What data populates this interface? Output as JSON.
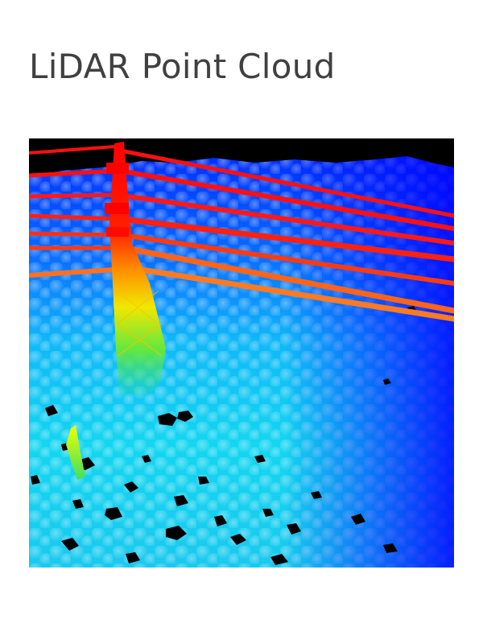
{
  "page": {
    "title": "LiDAR Point Cloud"
  },
  "colors": {
    "title_text": "#404040",
    "background": "#ffffff",
    "scale_low": "#0000ff",
    "scale_mid_low": "#00c8ff",
    "scale_mid": "#00ff80",
    "scale_mid_high": "#ffff00",
    "scale_high": "#ff0000"
  },
  "figure": {
    "icon": "lidar-point-cloud-image"
  }
}
